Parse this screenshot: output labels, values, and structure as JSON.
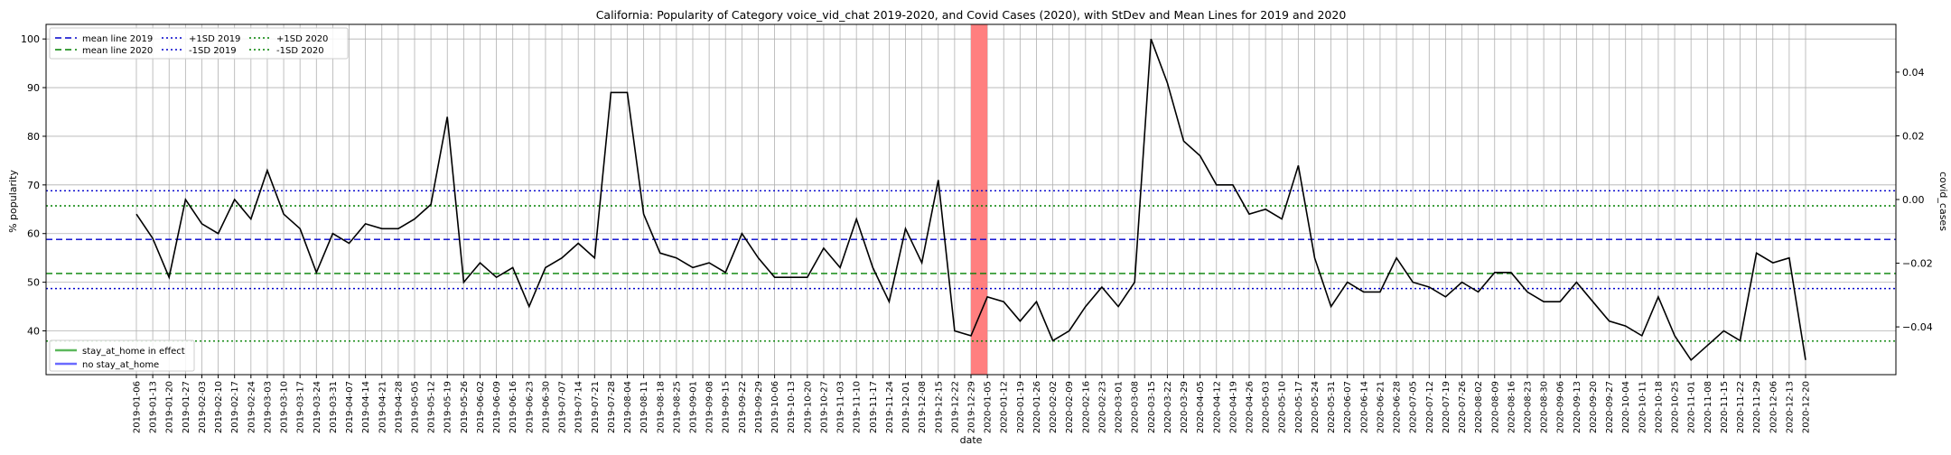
{
  "chart_data": {
    "type": "line",
    "title": "California: Popularity of Category voice_vid_chat 2019-2020, and Covid Cases (2020), with StDev and Mean Lines for 2019 and 2020",
    "xlabel": "date",
    "ylabel": "% popularity",
    "y2label": "covid_cases",
    "ylim": [
      31,
      103
    ],
    "y2lim": [
      -0.055,
      0.055
    ],
    "y_ticks": [
      40,
      50,
      60,
      70,
      80,
      90,
      100
    ],
    "y2_ticks": [
      -0.04,
      -0.02,
      0.0,
      0.02,
      0.04
    ],
    "y2_tick_labels": [
      "−0.04",
      "−0.02",
      "0.00",
      "0.02",
      "0.04"
    ],
    "grid": true,
    "x": [
      "2019-01-06",
      "2019-01-13",
      "2019-01-20",
      "2019-01-27",
      "2019-02-03",
      "2019-02-10",
      "2019-02-17",
      "2019-02-24",
      "2019-03-03",
      "2019-03-10",
      "2019-03-17",
      "2019-03-24",
      "2019-03-31",
      "2019-04-07",
      "2019-04-14",
      "2019-04-21",
      "2019-04-28",
      "2019-05-05",
      "2019-05-12",
      "2019-05-19",
      "2019-05-26",
      "2019-06-02",
      "2019-06-09",
      "2019-06-16",
      "2019-06-23",
      "2019-06-30",
      "2019-07-07",
      "2019-07-14",
      "2019-07-21",
      "2019-07-28",
      "2019-08-04",
      "2019-08-11",
      "2019-08-18",
      "2019-08-25",
      "2019-09-01",
      "2019-09-08",
      "2019-09-15",
      "2019-09-22",
      "2019-09-29",
      "2019-10-06",
      "2019-10-13",
      "2019-10-20",
      "2019-10-27",
      "2019-11-03",
      "2019-11-10",
      "2019-11-17",
      "2019-11-24",
      "2019-12-01",
      "2019-12-08",
      "2019-12-15",
      "2019-12-22",
      "2019-12-29",
      "2020-01-05",
      "2020-01-12",
      "2020-01-19",
      "2020-01-26",
      "2020-02-02",
      "2020-02-09",
      "2020-02-16",
      "2020-02-23",
      "2020-03-01",
      "2020-03-08",
      "2020-03-15",
      "2020-03-22",
      "2020-03-29",
      "2020-04-05",
      "2020-04-12",
      "2020-04-19",
      "2020-04-26",
      "2020-05-03",
      "2020-05-10",
      "2020-05-17",
      "2020-05-24",
      "2020-05-31",
      "2020-06-07",
      "2020-06-14",
      "2020-06-21",
      "2020-06-28",
      "2020-07-05",
      "2020-07-12",
      "2020-07-19",
      "2020-07-26",
      "2020-08-02",
      "2020-08-09",
      "2020-08-16",
      "2020-08-23",
      "2020-08-30",
      "2020-09-06",
      "2020-09-13",
      "2020-09-20",
      "2020-09-27",
      "2020-10-04",
      "2020-10-11",
      "2020-10-18",
      "2020-10-25",
      "2020-11-01",
      "2020-11-08",
      "2020-11-15",
      "2020-11-22",
      "2020-11-29",
      "2020-12-06",
      "2020-12-13",
      "2020-12-20"
    ],
    "series": [
      {
        "values": [
          64,
          59,
          51,
          67,
          62,
          60,
          67,
          63,
          73,
          64,
          61,
          52,
          60,
          58,
          62,
          61,
          61,
          63,
          66,
          84,
          50,
          54,
          51,
          53,
          45,
          53,
          55,
          58,
          55,
          89,
          89,
          64,
          56,
          55,
          53,
          54,
          52,
          60,
          55,
          51,
          51,
          51,
          57,
          53,
          63,
          53,
          46,
          61,
          54,
          71,
          40,
          39,
          47,
          46,
          42,
          46,
          38,
          40,
          45,
          49,
          45,
          50,
          100,
          91,
          79,
          76,
          70,
          70,
          64,
          65,
          63,
          74,
          55,
          45,
          50,
          48,
          48,
          55,
          50,
          49,
          47,
          50,
          48,
          52,
          52,
          48,
          46,
          46,
          50,
          46,
          42,
          41,
          39,
          47,
          39,
          34,
          37,
          40,
          38,
          56,
          54,
          55,
          34
        ],
        "color": "#000000"
      }
    ],
    "reference_lines": [
      {
        "name": "mean line 2019",
        "value": 58.8,
        "color": "#0000cc",
        "style": "dashed"
      },
      {
        "name": "mean line 2020",
        "value": 51.8,
        "color": "#008000",
        "style": "dashed"
      },
      {
        "name": "+1SD 2019",
        "value": 68.8,
        "color": "#0000cc",
        "style": "dotted"
      },
      {
        "name": "-1SD 2019",
        "value": 48.7,
        "color": "#0000cc",
        "style": "dotted"
      },
      {
        "name": "+1SD 2020",
        "value": 65.7,
        "color": "#008000",
        "style": "dotted"
      },
      {
        "name": "-1SD 2020",
        "value": 37.9,
        "color": "#008000",
        "style": "dotted"
      }
    ],
    "shaded_region": {
      "from": "2019-12-29",
      "to": "2020-01-05",
      "color": "#ff7f7f"
    },
    "legend_top": [
      {
        "label": "mean line 2019",
        "color": "#0000cc",
        "style": "dashed"
      },
      {
        "label": "mean line 2020",
        "color": "#008000",
        "style": "dashed"
      },
      {
        "label": "+1SD 2019",
        "color": "#0000cc",
        "style": "dotted"
      },
      {
        "label": "-1SD 2019",
        "color": "#0000cc",
        "style": "dotted"
      },
      {
        "label": "+1SD 2020",
        "color": "#008000",
        "style": "dotted"
      },
      {
        "label": "-1SD 2020",
        "color": "#008000",
        "style": "dotted"
      }
    ],
    "legend_bottom": [
      {
        "label": "stay_at_home in effect",
        "color": "#5cb85c"
      },
      {
        "label": "no stay_at_home",
        "color": "#6a6aff"
      }
    ],
    "legend_top_placement": "top-left",
    "legend_bottom_placement": "bottom-left"
  }
}
